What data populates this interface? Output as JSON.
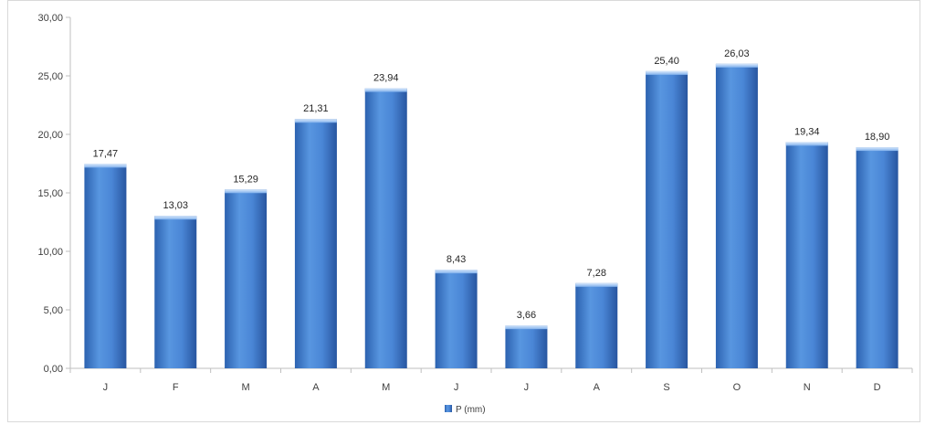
{
  "chart_data": {
    "type": "bar",
    "categories": [
      "J",
      "F",
      "M",
      "A",
      "M",
      "J",
      "J",
      "A",
      "S",
      "O",
      "N",
      "D"
    ],
    "series": [
      {
        "name": "P (mm)",
        "values": [
          17.47,
          13.03,
          15.29,
          21.31,
          23.94,
          8.43,
          3.66,
          7.28,
          25.4,
          26.03,
          19.34,
          18.9
        ],
        "labels": [
          "17,47",
          "13,03",
          "15,29",
          "21,31",
          "23,94",
          "8,43",
          "3,66",
          "7,28",
          "25,40",
          "26,03",
          "19,34",
          "18,90"
        ]
      }
    ],
    "yticks": [
      "0,00",
      "5,00",
      "10,00",
      "15,00",
      "20,00",
      "25,00",
      "30,00"
    ],
    "ylim": [
      0,
      30
    ],
    "grid": false,
    "legend": "bottom-center",
    "title": "",
    "xlabel": "",
    "ylabel": "",
    "colors": {
      "bar": "#3f7fd0",
      "bar_dark": "#2a5ea8",
      "bar_light": "#6ea6ea",
      "axis": "#bfbfbf"
    }
  }
}
